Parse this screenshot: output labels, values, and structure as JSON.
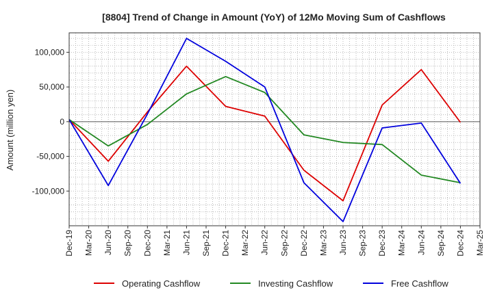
{
  "chart_data": {
    "type": "line",
    "title": "[8804]  Trend of Change in Amount (YoY) of 12Mo Moving Sum of Cashflows",
    "xlabel": "",
    "ylabel": "Amount (million yen)",
    "categories": [
      "Dec-19",
      "Mar-20",
      "Jun-20",
      "Sep-20",
      "Dec-20",
      "Mar-21",
      "Jun-21",
      "Sep-21",
      "Dec-21",
      "Mar-22",
      "Jun-22",
      "Sep-22",
      "Dec-22",
      "Mar-23",
      "Jun-23",
      "Sep-23",
      "Dec-23",
      "Mar-24",
      "Jun-24",
      "Sep-24",
      "Dec-24",
      "Mar-25"
    ],
    "y_ticks": [
      100000,
      50000,
      0,
      -50000,
      -100000
    ],
    "y_tick_labels": [
      "100,000",
      "50,000",
      "0",
      "-50,000",
      "-100,000"
    ],
    "ylim": [
      -150000,
      128000
    ],
    "grid": true,
    "legend_position": "bottom",
    "series": [
      {
        "name": "Operating Cashflow",
        "color": "#dd0000",
        "values": [
          3000,
          null,
          -57000,
          null,
          14000,
          null,
          80000,
          null,
          22000,
          null,
          8000,
          null,
          -70000,
          null,
          -114000,
          null,
          24000,
          null,
          75000,
          null,
          -1000,
          null
        ]
      },
      {
        "name": "Investing Cashflow",
        "color": "#228822",
        "values": [
          3000,
          null,
          -35000,
          null,
          -4000,
          null,
          40000,
          null,
          65000,
          null,
          42000,
          null,
          -19000,
          null,
          -30000,
          null,
          -33000,
          null,
          -77000,
          null,
          -88000,
          null
        ]
      },
      {
        "name": "Free Cashflow",
        "color": "#0000dd",
        "values": [
          3000,
          null,
          -92000,
          null,
          11000,
          null,
          120000,
          null,
          87000,
          null,
          50000,
          null,
          -88000,
          null,
          -144000,
          null,
          -9000,
          null,
          -2000,
          null,
          -89000,
          null
        ]
      }
    ]
  }
}
